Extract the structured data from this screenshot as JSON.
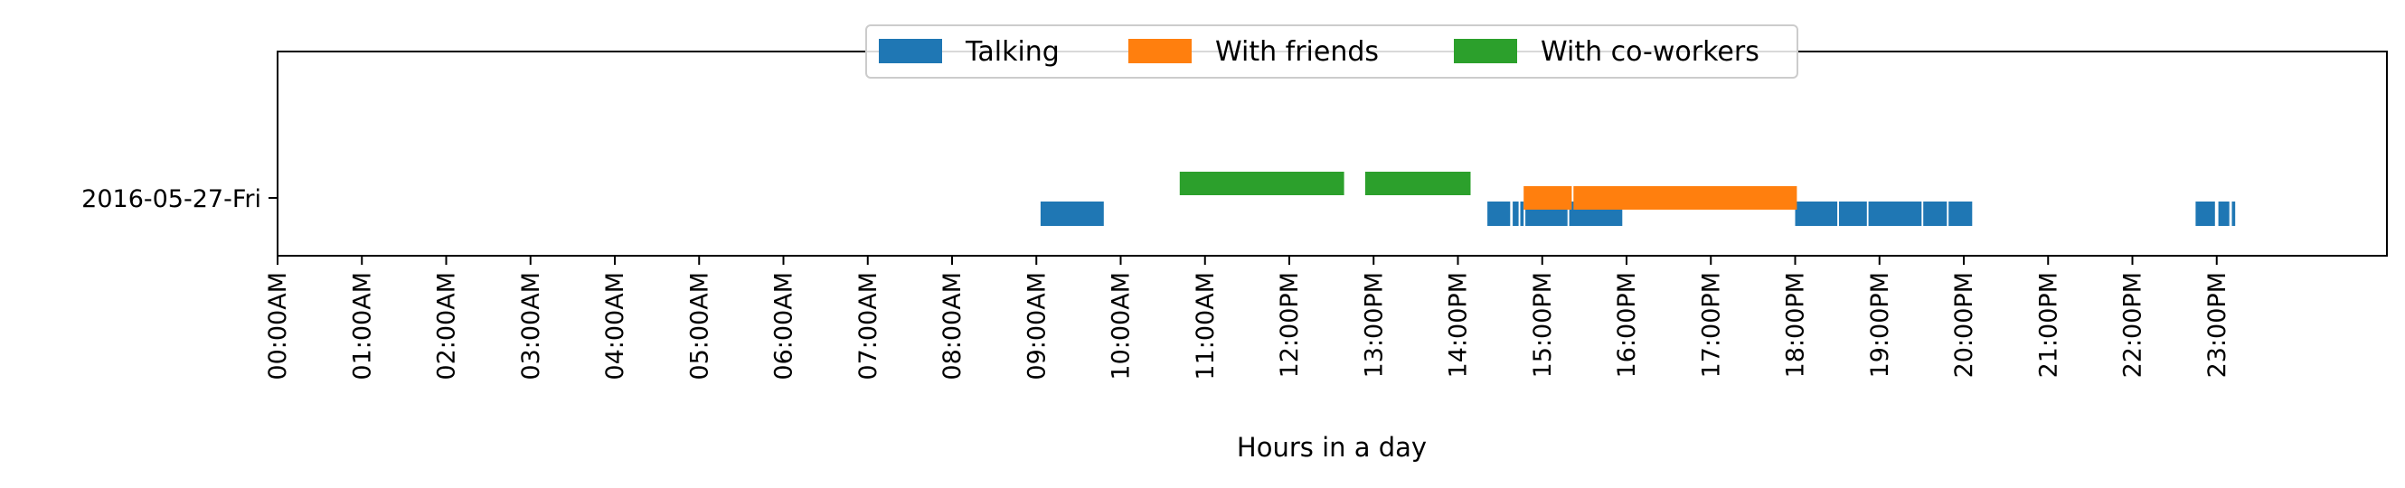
{
  "chart_data": {
    "type": "timeline",
    "xlabel": "Hours in a day",
    "ylabel": "",
    "title": "",
    "xlim": [
      0,
      24
    ],
    "grid": false,
    "legend_placement": "upper-center",
    "rows": [
      "2016-05-27-Fri"
    ],
    "x_ticks": [
      "00:00AM",
      "01:00AM",
      "02:00AM",
      "03:00AM",
      "04:00AM",
      "05:00AM",
      "06:00AM",
      "07:00AM",
      "08:00AM",
      "09:00AM",
      "10:00AM",
      "11:00AM",
      "12:00PM",
      "13:00PM",
      "14:00PM",
      "15:00PM",
      "16:00PM",
      "17:00PM",
      "18:00PM",
      "19:00PM",
      "20:00PM",
      "21:00PM",
      "22:00PM",
      "23:00PM"
    ],
    "series": [
      {
        "name": "Talking",
        "color": "#1f77b4",
        "lane": "lower",
        "segments": [
          [
            9.05,
            9.8
          ],
          [
            14.35,
            14.62
          ],
          [
            14.65,
            14.72
          ],
          [
            14.74,
            14.78
          ],
          [
            14.8,
            15.3
          ],
          [
            15.32,
            15.95
          ],
          [
            18.0,
            18.5
          ],
          [
            18.52,
            18.85
          ],
          [
            18.87,
            19.5
          ],
          [
            19.52,
            19.8
          ],
          [
            19.82,
            20.1
          ],
          [
            22.75,
            22.98
          ],
          [
            23.02,
            23.15
          ],
          [
            23.18,
            23.22
          ]
        ]
      },
      {
        "name": "With friends",
        "color": "#ff7f0e",
        "lane": "middle",
        "segments": [
          [
            14.78,
            15.35
          ],
          [
            15.37,
            18.02
          ]
        ]
      },
      {
        "name": "With co-workers",
        "color": "#2ca02c",
        "lane": "upper",
        "segments": [
          [
            10.7,
            12.65
          ],
          [
            12.9,
            14.15
          ]
        ]
      }
    ]
  }
}
